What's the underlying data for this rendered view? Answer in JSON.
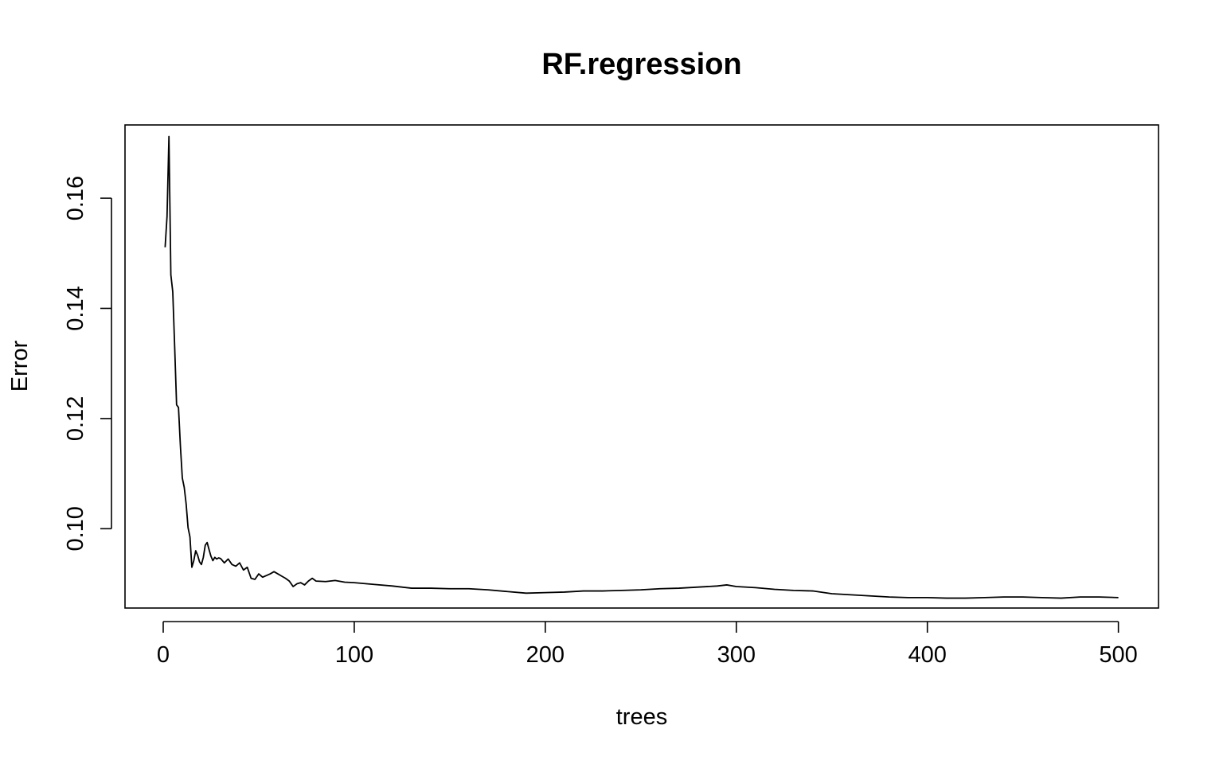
{
  "chart_data": {
    "type": "line",
    "title": "RF.regression",
    "xlabel": "trees",
    "ylabel": "Error",
    "xlim": [
      -20,
      521
    ],
    "ylim": [
      0.0856,
      0.1733
    ],
    "xticks": [
      0,
      100,
      200,
      300,
      400,
      500
    ],
    "yticks": [
      0.1,
      0.12,
      0.14,
      0.16
    ],
    "xtick_labels": [
      "0",
      "100",
      "200",
      "300",
      "400",
      "500"
    ],
    "ytick_labels": [
      "0.10",
      "0.12",
      "0.14",
      "0.16"
    ],
    "grid": false,
    "legend": "none",
    "line_color": "#000000",
    "series": [
      {
        "x": [
          1,
          2,
          3,
          4,
          5,
          6,
          7,
          8,
          9,
          10,
          11,
          12,
          13,
          14,
          15,
          16,
          17,
          18,
          19,
          20,
          21,
          22,
          23,
          24,
          25,
          26,
          27,
          28,
          29,
          30,
          32,
          34,
          36,
          38,
          40,
          42,
          44,
          46,
          48,
          50,
          52,
          54,
          56,
          58,
          60,
          62,
          64,
          66,
          68,
          70,
          72,
          74,
          76,
          78,
          80,
          85,
          90,
          95,
          100,
          110,
          120,
          130,
          140,
          150,
          160,
          170,
          180,
          190,
          200,
          210,
          220,
          230,
          240,
          250,
          260,
          270,
          280,
          290,
          295,
          300,
          310,
          320,
          330,
          340,
          350,
          360,
          370,
          380,
          390,
          400,
          410,
          420,
          430,
          440,
          450,
          460,
          470,
          480,
          490,
          500
        ],
        "values": [
          0.1511,
          0.1567,
          0.1712,
          0.1461,
          0.143,
          0.133,
          0.1225,
          0.122,
          0.115,
          0.1092,
          0.1075,
          0.1045,
          0.1002,
          0.0985,
          0.093,
          0.0942,
          0.096,
          0.0952,
          0.094,
          0.0935,
          0.0948,
          0.097,
          0.0975,
          0.0962,
          0.095,
          0.0942,
          0.0948,
          0.0945,
          0.0947,
          0.0946,
          0.0938,
          0.0945,
          0.0935,
          0.0932,
          0.0938,
          0.0925,
          0.093,
          0.091,
          0.0908,
          0.0918,
          0.0912,
          0.0915,
          0.0918,
          0.0922,
          0.0918,
          0.0914,
          0.091,
          0.0905,
          0.0895,
          0.09,
          0.0902,
          0.0898,
          0.0905,
          0.091,
          0.0905,
          0.0904,
          0.0906,
          0.0903,
          0.0902,
          0.0899,
          0.0896,
          0.0892,
          0.0892,
          0.0891,
          0.0891,
          0.0889,
          0.0886,
          0.0883,
          0.0884,
          0.0885,
          0.0887,
          0.0887,
          0.0888,
          0.0889,
          0.0891,
          0.0892,
          0.0894,
          0.0896,
          0.0898,
          0.0895,
          0.0893,
          0.089,
          0.0888,
          0.0887,
          0.0882,
          0.088,
          0.0878,
          0.0876,
          0.0875,
          0.0875,
          0.0874,
          0.0874,
          0.0875,
          0.0876,
          0.0876,
          0.0875,
          0.0874,
          0.0876,
          0.0876,
          0.0875
        ]
      }
    ]
  }
}
